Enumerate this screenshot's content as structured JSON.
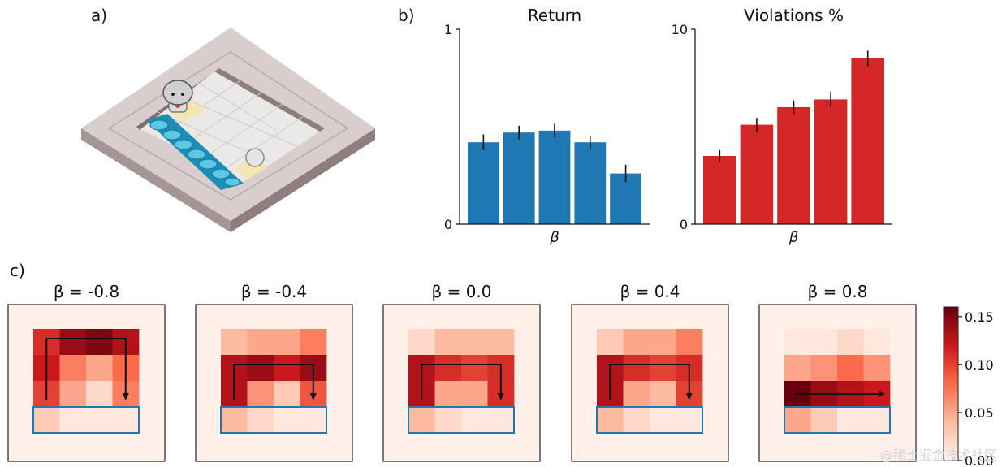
{
  "panel_labels": {
    "a": "a)",
    "b": "b)",
    "c": "c)"
  },
  "watermark": "@稀土掘金技术社区",
  "chart_data": [
    {
      "type": "bar",
      "title": "Return",
      "xlabel": "β",
      "ylabel": "",
      "ylim": [
        0,
        1
      ],
      "ytick_labels": [
        "0",
        "1"
      ],
      "color": "#1f77b4",
      "values": [
        0.42,
        0.47,
        0.48,
        0.42,
        0.26
      ],
      "errors": [
        0.04,
        0.035,
        0.035,
        0.035,
        0.045
      ]
    },
    {
      "type": "bar",
      "title": "Violations %",
      "xlabel": "β",
      "ylabel": "",
      "ylim": [
        0,
        10
      ],
      "ytick_labels": [
        "0",
        "10"
      ],
      "color": "#d62728",
      "values": [
        3.5,
        5.1,
        6.0,
        6.4,
        8.5
      ],
      "errors": [
        0.3,
        0.35,
        0.35,
        0.4,
        0.4
      ]
    },
    {
      "type": "heatmap",
      "colorbar": {
        "min": 0.0,
        "max": 0.16,
        "tick_values": [
          0.0,
          0.05,
          0.1,
          0.15
        ],
        "tick_labels": [
          "0.00",
          "0.05",
          "0.10",
          "0.15"
        ],
        "colors": [
          "#fff5f0",
          "#fcbba1",
          "#fb6a4a",
          "#cb181d",
          "#67000d"
        ]
      },
      "maps": [
        {
          "title": "β = -0.8",
          "values": [
            [
              0.11,
              0.14,
              0.15,
              0.13
            ],
            [
              0.12,
              0.07,
              0.05,
              0.08
            ],
            [
              0.1,
              0.05,
              0.02,
              0.07
            ],
            [
              0.03,
              0.01,
              0.01,
              0.01
            ]
          ],
          "arrow": "u"
        },
        {
          "title": "β = -0.4",
          "values": [
            [
              0.04,
              0.05,
              0.05,
              0.07
            ],
            [
              0.13,
              0.14,
              0.12,
              0.14
            ],
            [
              0.13,
              0.06,
              0.03,
              0.09
            ],
            [
              0.04,
              0.02,
              0.01,
              0.01
            ]
          ],
          "arrow": "u"
        },
        {
          "title": "β = 0.0",
          "values": [
            [
              0.02,
              0.04,
              0.04,
              0.04
            ],
            [
              0.13,
              0.11,
              0.1,
              0.11
            ],
            [
              0.13,
              0.05,
              0.05,
              0.11
            ],
            [
              0.04,
              0.02,
              0.01,
              0.01
            ]
          ],
          "arrow": "u"
        },
        {
          "title": "β = 0.4",
          "values": [
            [
              0.03,
              0.05,
              0.05,
              0.07
            ],
            [
              0.13,
              0.11,
              0.1,
              0.11
            ],
            [
              0.13,
              0.05,
              0.04,
              0.1
            ],
            [
              0.04,
              0.02,
              0.01,
              0.01
            ]
          ],
          "arrow": "u"
        },
        {
          "title": "β = 0.8",
          "values": [
            [
              0.01,
              0.01,
              0.02,
              0.01
            ],
            [
              0.05,
              0.06,
              0.08,
              0.06
            ],
            [
              0.16,
              0.14,
              0.13,
              0.12
            ],
            [
              0.05,
              0.03,
              0.01,
              0.01
            ]
          ],
          "arrow": "straight"
        }
      ]
    }
  ]
}
